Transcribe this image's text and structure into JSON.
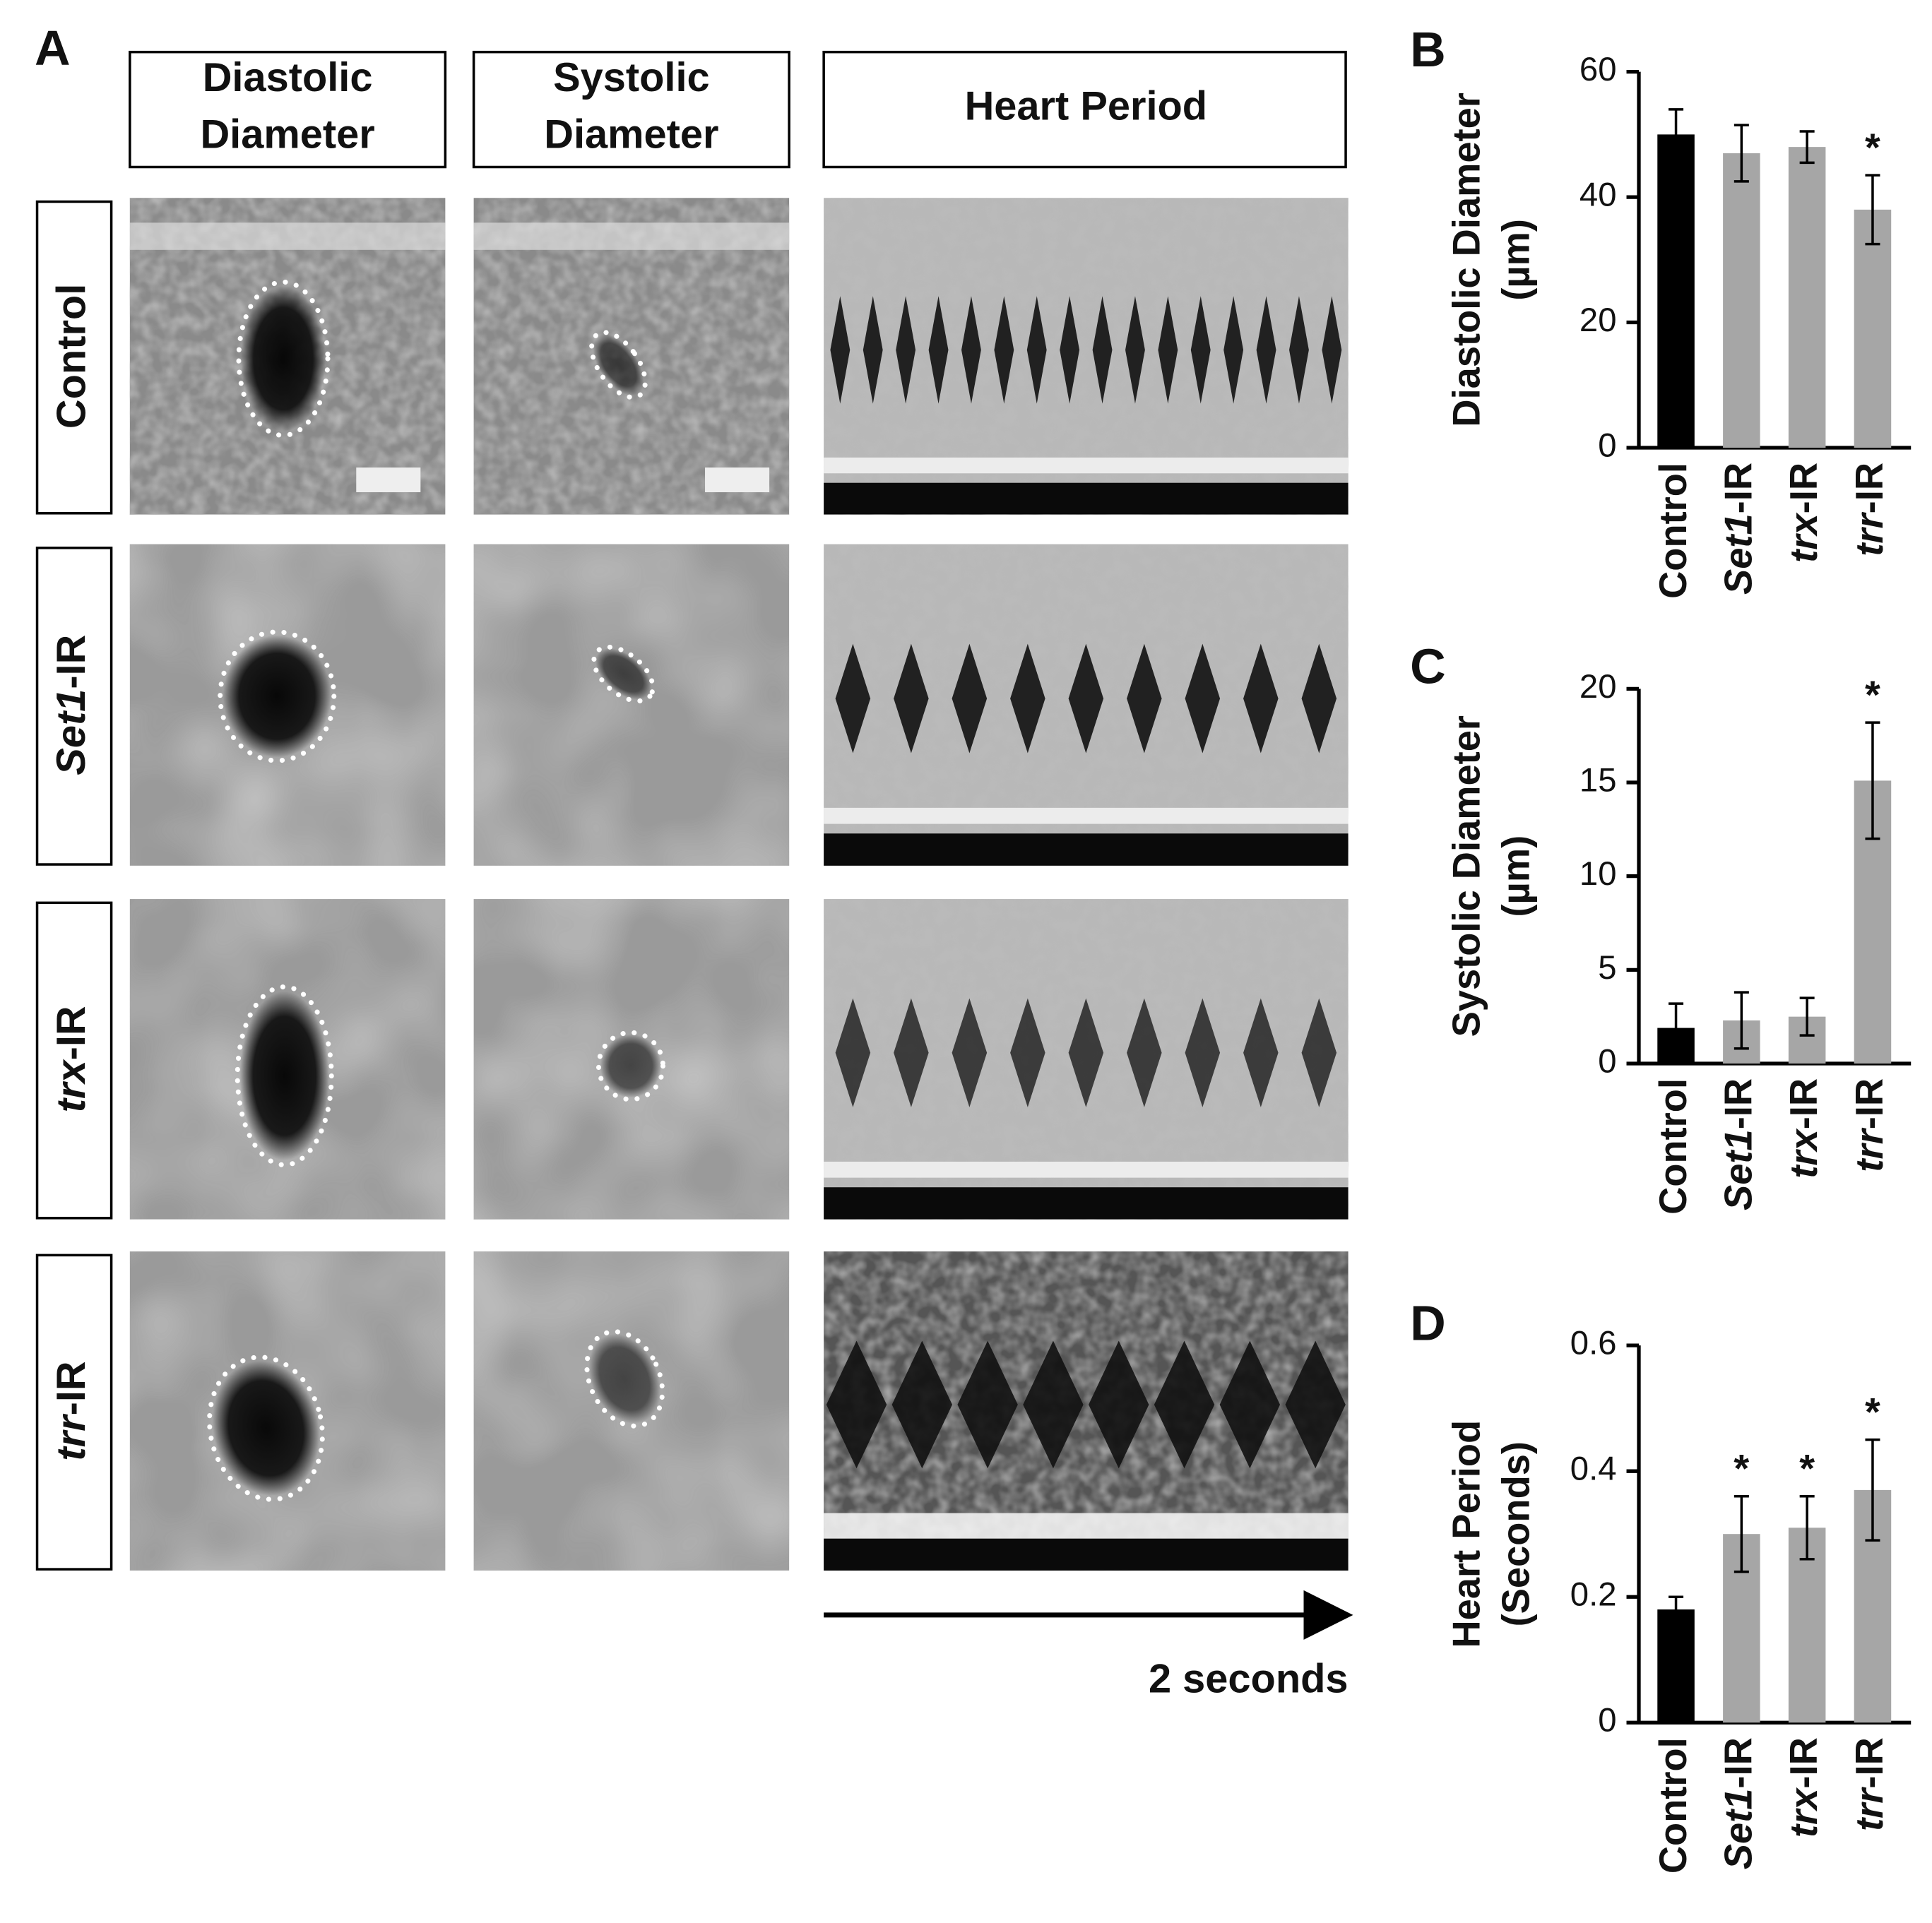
{
  "panel_a": {
    "label": "A",
    "column_headers": [
      [
        "Diastolic",
        "Diameter"
      ],
      [
        "Systolic",
        "Diameter"
      ],
      [
        "Heart Period"
      ]
    ],
    "row_labels": [
      "Control",
      "Set1-IR",
      "trx-IR",
      "trr-IR"
    ],
    "time_label": "2 seconds"
  },
  "chart_data": [
    {
      "type": "bar",
      "panel_label": "B",
      "ylabel": [
        "Diastolic Diameter",
        "(µm)"
      ],
      "categories": [
        "Control",
        "Set1-IR",
        "trx-IR",
        "trr-IR"
      ],
      "values": [
        50,
        47,
        48,
        38
      ],
      "errors": [
        4,
        4.5,
        2.5,
        5.5
      ],
      "significance": [
        null,
        null,
        null,
        "*"
      ],
      "colors": [
        "#000000",
        "#a6a6a6",
        "#a6a6a6",
        "#a6a6a6"
      ],
      "ylim": [
        0,
        60
      ],
      "yticks": [
        0,
        20,
        40,
        60
      ]
    },
    {
      "type": "bar",
      "panel_label": "C",
      "ylabel": [
        "Systolic Diameter",
        "(µm)"
      ],
      "categories": [
        "Control",
        "Set1-IR",
        "trx-IR",
        "trr-IR"
      ],
      "values": [
        1.9,
        2.3,
        2.5,
        15.1
      ],
      "errors": [
        1.3,
        1.5,
        1.0,
        3.1
      ],
      "significance": [
        null,
        null,
        null,
        "*"
      ],
      "colors": [
        "#000000",
        "#a6a6a6",
        "#a6a6a6",
        "#a6a6a6"
      ],
      "ylim": [
        0,
        20
      ],
      "yticks": [
        0,
        5,
        10,
        15,
        20
      ]
    },
    {
      "type": "bar",
      "panel_label": "D",
      "ylabel": [
        "Heart Period",
        "(Seconds)"
      ],
      "categories": [
        "Control",
        "Set1-IR",
        "trx-IR",
        "trr-IR"
      ],
      "values": [
        0.18,
        0.3,
        0.31,
        0.37
      ],
      "errors": [
        0.02,
        0.06,
        0.05,
        0.08
      ],
      "significance": [
        null,
        "*",
        "*",
        "*"
      ],
      "colors": [
        "#000000",
        "#a6a6a6",
        "#a6a6a6",
        "#a6a6a6"
      ],
      "ylim": [
        0,
        0.6
      ],
      "yticks": [
        0,
        0.2,
        0.4,
        0.6
      ]
    }
  ]
}
